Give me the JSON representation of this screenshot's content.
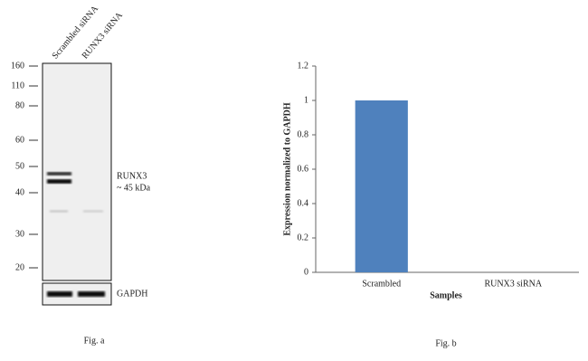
{
  "blot": {
    "lanes": [
      "Scrambled siRNA",
      "RUNX3 siRNA"
    ],
    "markers": [
      "160",
      "110",
      "80",
      "60",
      "50",
      "40",
      "30",
      "20"
    ],
    "target": "RUNX3",
    "size": "~ 45 kDa",
    "control": "GAPDH",
    "caption": "Fig. a"
  },
  "chart_data": {
    "type": "bar",
    "ylabel": "Expression  normalized to GAPDH",
    "xlabel": "Samples",
    "categories": [
      "Scrambled",
      "RUNX3 siRNA"
    ],
    "values": [
      1,
      0
    ],
    "color": "#4f81bd",
    "ylim": [
      0,
      1.2
    ],
    "yticks": [
      0,
      0.2,
      0.4,
      0.6,
      0.8,
      1,
      1.2
    ],
    "caption": "Fig. b"
  }
}
